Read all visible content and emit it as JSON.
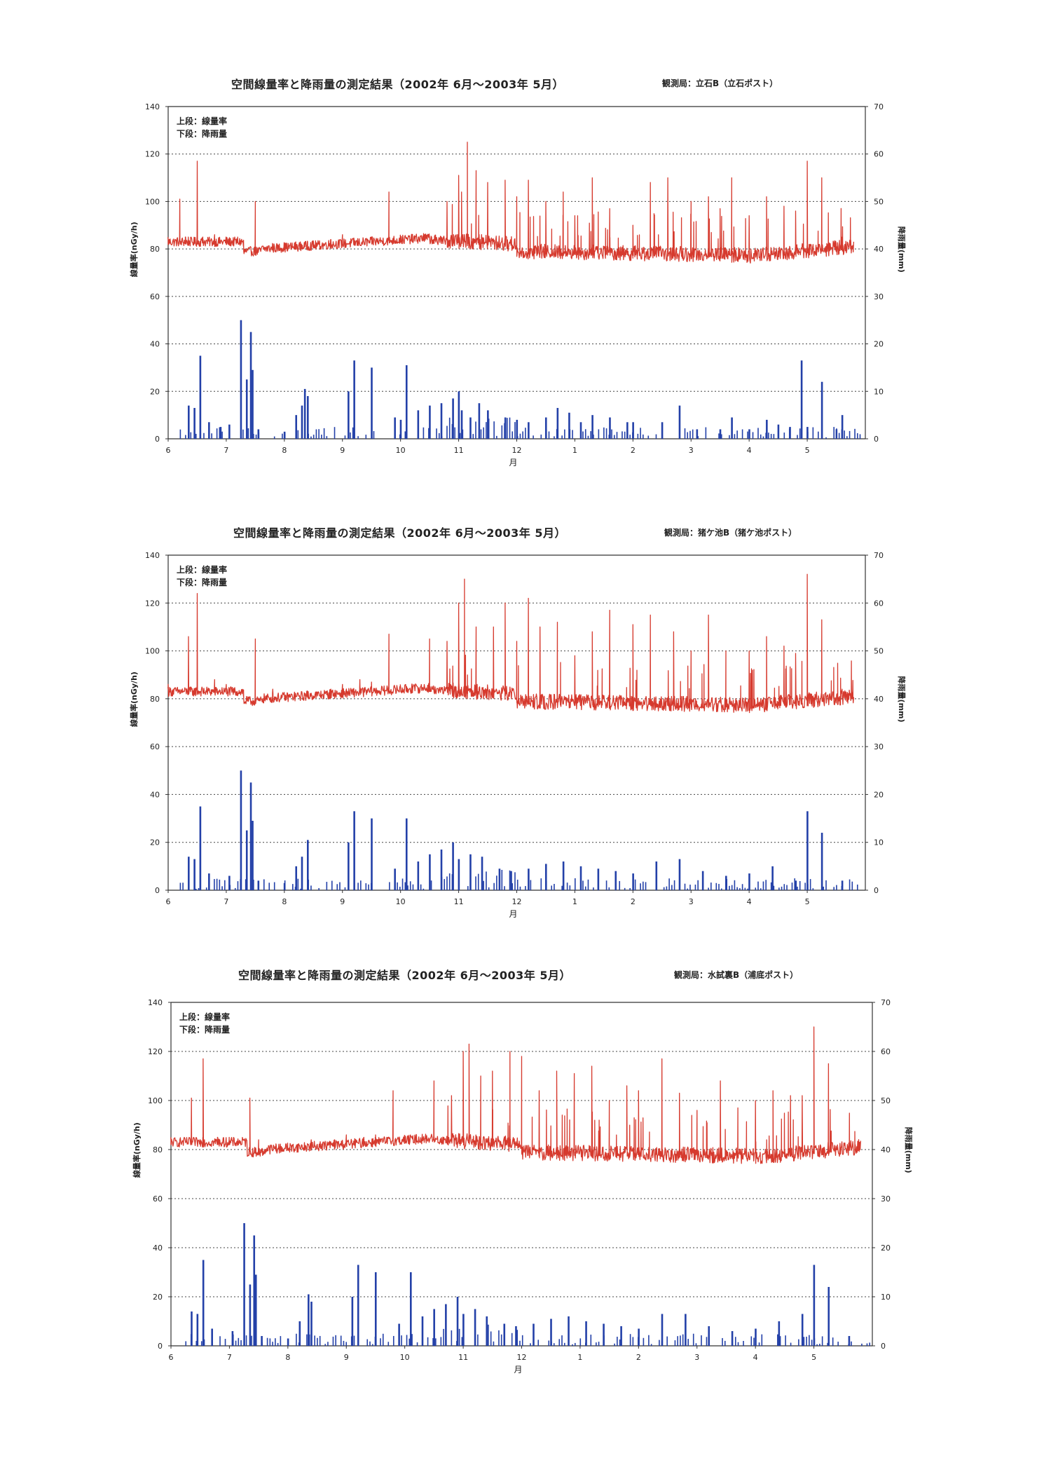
{
  "chart_data": [
    {
      "type": "line",
      "title": "空間線量率と降雨量の測定結果（2002年 6月～2003年 5月）",
      "station": "観測局：立石B（立石ポスト）",
      "legend": [
        "上段：線量率",
        "下段：降雨量"
      ],
      "ylabel_left": "線量率(nGy/h)",
      "ylabel_right": "降雨量(mm)",
      "xlabel": "月",
      "x_ticks": [
        "6",
        "7",
        "8",
        "9",
        "10",
        "11",
        "12",
        "1",
        "2",
        "3",
        "4",
        "5"
      ],
      "y_left_ticks": [
        "0",
        "20",
        "40",
        "60",
        "80",
        "100",
        "120",
        "140"
      ],
      "y_right_ticks": [
        "0",
        "10",
        "20",
        "30",
        "40",
        "50",
        "60",
        "70"
      ],
      "ylim_left": [
        0,
        140
      ],
      "ylim_right": [
        0,
        70
      ],
      "grid": "dotted horizontal at 20,40,60,80,100,120",
      "colors": {
        "dose": "#d63a2e",
        "rain": "#2340a8"
      },
      "series": [
        {
          "name": "線量率",
          "axis": "left",
          "x": [
            0,
            0.2,
            0.3,
            0.35,
            0.5,
            0.6,
            0.8,
            1,
            1.2,
            1.3,
            1.5,
            1.8,
            2,
            2.2,
            2.4,
            2.5,
            2.8,
            3,
            3.2,
            3.5,
            3.8,
            4,
            4.2,
            4.4,
            4.6,
            4.8,
            5,
            5.05,
            5.15,
            5.3,
            5.5,
            5.8,
            6,
            6.2,
            6.5,
            6.8,
            7,
            7.3,
            7.6,
            8,
            8.3,
            8.6,
            9,
            9.3,
            9.5,
            9.7,
            10,
            10.3,
            10.6,
            10.8,
            11,
            11.25,
            11.5,
            11.6
          ],
          "values": [
            82,
            101,
            85,
            83,
            117,
            84,
            86,
            82,
            83,
            79,
            100,
            82,
            80,
            82,
            83,
            83,
            84,
            86,
            84,
            85,
            104,
            84,
            85,
            86,
            85,
            100,
            111,
            104,
            125,
            113,
            108,
            109,
            102,
            109,
            100,
            104,
            94,
            110,
            97,
            90,
            108,
            110,
            100,
            102,
            97,
            110,
            94,
            102,
            98,
            96,
            117,
            110,
            80,
            85
          ]
        },
        {
          "name": "降雨量",
          "axis": "right",
          "x": [
            0.35,
            0.45,
            0.55,
            0.7,
            0.9,
            1.05,
            1.25,
            1.35,
            1.42,
            1.45,
            1.55,
            2,
            2.2,
            2.3,
            2.35,
            2.4,
            3.1,
            3.2,
            3.5,
            3.9,
            4,
            4.1,
            4.3,
            4.5,
            4.7,
            4.9,
            5,
            5.05,
            5.2,
            5.35,
            5.5,
            5.8,
            6,
            6.2,
            6.5,
            6.7,
            6.9,
            7.1,
            7.3,
            7.6,
            7.9,
            8,
            8.5,
            8.8,
            9.1,
            9.5,
            9.7,
            10,
            10.3,
            10.5,
            10.7,
            10.9,
            11.0,
            11.25,
            11.5,
            11.6
          ],
          "values": [
            7,
            6.5,
            17.5,
            3.5,
            2.5,
            3,
            25,
            12.5,
            22.5,
            14.5,
            2,
            1.5,
            5,
            7,
            10.5,
            9,
            10,
            16.5,
            15,
            4.5,
            4,
            15.5,
            6,
            7,
            7.5,
            8.5,
            10,
            6,
            4.5,
            7.5,
            6,
            4.5,
            4,
            3.5,
            4.5,
            6.5,
            5.5,
            3.5,
            5,
            4.5,
            3.5,
            3.5,
            3.5,
            7,
            2,
            2,
            4.5,
            2,
            4,
            3,
            2.5,
            16.5,
            2.5,
            12,
            2,
            5
          ]
        }
      ]
    },
    {
      "type": "line",
      "title": "空間線量率と降雨量の測定結果（2002年 6月～2003年 5月）",
      "station": "観測局：猪ケ池B（猪ケ池ポスト）",
      "legend": [
        "上段：線量率",
        "下段：降雨量"
      ],
      "ylabel_left": "線量率(nGy/h)",
      "ylabel_right": "降雨量(mm)",
      "xlabel": "月",
      "x_ticks": [
        "6",
        "7",
        "8",
        "9",
        "10",
        "11",
        "12",
        "1",
        "2",
        "3",
        "4",
        "5"
      ],
      "y_left_ticks": [
        "0",
        "20",
        "40",
        "60",
        "80",
        "100",
        "120",
        "140"
      ],
      "y_right_ticks": [
        "0",
        "10",
        "20",
        "30",
        "40",
        "50",
        "60",
        "70"
      ],
      "ylim_left": [
        0,
        140
      ],
      "ylim_right": [
        0,
        70
      ],
      "grid": "dotted horizontal at 20,40,60,80,100,120",
      "colors": {
        "dose": "#d63a2e",
        "rain": "#2340a8"
      },
      "series": [
        {
          "name": "線量率",
          "axis": "left",
          "x": [
            0,
            0.35,
            0.5,
            0.8,
            1,
            1.3,
            1.5,
            1.8,
            2,
            2.4,
            2.8,
            3,
            3.3,
            3.5,
            3.8,
            4,
            4.2,
            4.5,
            4.8,
            5,
            5.1,
            5.3,
            5.6,
            5.8,
            6,
            6.2,
            6.4,
            6.7,
            7,
            7.3,
            7.6,
            8,
            8.3,
            8.7,
            9,
            9.3,
            9.6,
            10,
            10.3,
            10.6,
            10.8,
            11.0,
            11.25,
            11.6
          ],
          "values": [
            86,
            106,
            124,
            88,
            86,
            80,
            105,
            84,
            82,
            82,
            84,
            86,
            88,
            87,
            107,
            85,
            86,
            105,
            104,
            120,
            130,
            110,
            110,
            120,
            104,
            122,
            110,
            112,
            98,
            108,
            117,
            111,
            115,
            108,
            100,
            115,
            100,
            100,
            106,
            102,
            99,
            132,
            113,
            84
          ]
        },
        {
          "name": "降雨量",
          "axis": "right",
          "x": [
            0.35,
            0.45,
            0.55,
            0.7,
            1.05,
            1.25,
            1.35,
            1.42,
            1.45,
            1.55,
            2,
            2.2,
            2.3,
            2.4,
            3.1,
            3.2,
            3.5,
            3.9,
            4.1,
            4.3,
            4.5,
            4.7,
            4.9,
            5,
            5.2,
            5.4,
            5.7,
            5.9,
            6.2,
            6.5,
            6.8,
            7.1,
            7.4,
            7.7,
            8,
            8.4,
            8.8,
            9.2,
            9.6,
            10,
            10.4,
            10.8,
            11.0,
            11.25,
            11.6
          ],
          "values": [
            7,
            6.5,
            17.5,
            3.5,
            3,
            25,
            12.5,
            22.5,
            14.5,
            2,
            1.5,
            5,
            7,
            10.5,
            10,
            16.5,
            15,
            4.5,
            15,
            6,
            7.5,
            8.5,
            10,
            6.5,
            7.5,
            7,
            4.5,
            4,
            4.5,
            5.5,
            6,
            5,
            4.5,
            4,
            3.5,
            6,
            6.5,
            4,
            3,
            3.5,
            5,
            2,
            16.5,
            12,
            2
          ]
        }
      ]
    },
    {
      "type": "line",
      "title": "空間線量率と降雨量の測定結果（2002年 6月～2003年 5月）",
      "station": "観測局：水試裏B（浦底ポスト）",
      "legend": [
        "上段：線量率",
        "下段：降雨量"
      ],
      "ylabel_left": "線量率(nGy/h)",
      "ylabel_right": "降雨量(mm)",
      "xlabel": "月",
      "x_ticks": [
        "6",
        "7",
        "8",
        "9",
        "10",
        "11",
        "12",
        "1",
        "2",
        "3",
        "4",
        "5"
      ],
      "y_left_ticks": [
        "0",
        "20",
        "40",
        "60",
        "80",
        "100",
        "120",
        "140"
      ],
      "y_right_ticks": [
        "0",
        "10",
        "20",
        "30",
        "40",
        "50",
        "60",
        "70"
      ],
      "ylim_left": [
        0,
        140
      ],
      "ylim_right": [
        0,
        70
      ],
      "grid": "dotted horizontal at 20,40,60,80,100,120",
      "colors": {
        "dose": "#d63a2e",
        "rain": "#2340a8"
      },
      "series": [
        {
          "name": "線量率",
          "axis": "left",
          "x": [
            0,
            0.35,
            0.55,
            0.8,
            1,
            1.35,
            1.5,
            1.8,
            2,
            2.4,
            2.8,
            3,
            3.3,
            3.5,
            3.8,
            4,
            4.2,
            4.5,
            4.8,
            5,
            5.1,
            5.3,
            5.5,
            5.8,
            6,
            6.3,
            6.6,
            6.9,
            7.2,
            7.5,
            7.8,
            8,
            8.4,
            8.7,
            9,
            9.4,
            9.7,
            10,
            10.3,
            10.6,
            10.8,
            11.0,
            11.25,
            11.6
          ],
          "values": [
            82,
            101,
            117,
            85,
            82,
            101,
            84,
            82,
            80,
            84,
            84,
            86,
            85,
            86,
            104,
            85,
            86,
            108,
            102,
            120,
            123,
            110,
            112,
            120,
            118,
            104,
            112,
            111,
            114,
            100,
            106,
            104,
            117,
            103,
            96,
            108,
            97,
            100,
            104,
            102,
            102,
            130,
            115,
            80
          ]
        },
        {
          "name": "降雨量",
          "axis": "right",
          "x": [
            0.35,
            0.45,
            0.55,
            0.7,
            1.05,
            1.25,
            1.35,
            1.42,
            1.45,
            1.55,
            2,
            2.2,
            2.35,
            2.4,
            3.1,
            3.2,
            3.5,
            3.9,
            4.1,
            4.3,
            4.5,
            4.7,
            4.9,
            5,
            5.2,
            5.4,
            5.7,
            5.9,
            6.2,
            6.5,
            6.8,
            7.1,
            7.4,
            7.7,
            8,
            8.4,
            8.8,
            9.2,
            9.6,
            10,
            10.4,
            10.8,
            11.0,
            11.25,
            11.6
          ],
          "values": [
            7,
            6.5,
            17.5,
            3.5,
            3,
            25,
            12.5,
            22.5,
            14.5,
            2,
            1.5,
            5,
            10.5,
            9,
            10,
            16.5,
            15,
            4.5,
            15,
            6,
            7.5,
            8.5,
            10,
            6.5,
            7.5,
            6,
            4.5,
            4,
            4.5,
            5.5,
            6,
            5,
            4.5,
            4,
            3.5,
            6.5,
            6.5,
            4,
            3,
            3.5,
            5,
            6.5,
            16.5,
            12,
            2
          ]
        }
      ]
    }
  ]
}
